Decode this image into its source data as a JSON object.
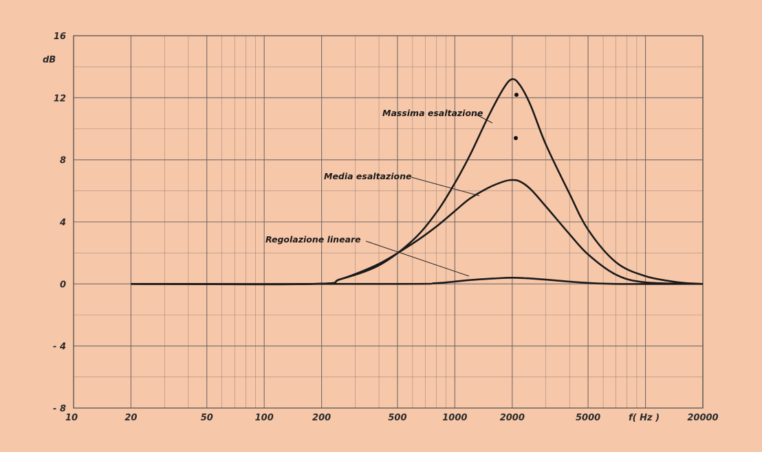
{
  "chart_data": {
    "type": "line",
    "xscale": "log",
    "xlim": [
      10,
      20000
    ],
    "ylim": [
      -8,
      16
    ],
    "grid": true,
    "ylabel": "dB",
    "xlabel": "f( Hz )",
    "x_ticks": [
      "10",
      "20",
      "50",
      "100",
      "200",
      "500",
      "1000",
      "2000",
      "5000",
      "20000"
    ],
    "x_tick_values": [
      10,
      20,
      50,
      100,
      200,
      500,
      1000,
      2000,
      5000,
      20000
    ],
    "y_ticks": [
      "16",
      "12",
      "8",
      "4",
      "0",
      "- 4",
      "- 8"
    ],
    "y_tick_values": [
      16,
      12,
      8,
      4,
      0,
      -4,
      -8
    ],
    "series": [
      {
        "name": "Massima esaltazione",
        "x": [
          20,
          180,
          250,
          400,
          600,
          800,
          1000,
          1200,
          1500,
          1800,
          2000,
          2200,
          2500,
          3000,
          4000,
          5000,
          7000,
          10000,
          15000,
          20000
        ],
        "y": [
          0,
          0,
          0.3,
          1.2,
          2.8,
          4.6,
          6.5,
          8.3,
          10.8,
          12.6,
          13.2,
          12.8,
          11.5,
          9.0,
          5.8,
          3.5,
          1.4,
          0.5,
          0.1,
          0
        ]
      },
      {
        "name": "Media esaltazione",
        "x": [
          20,
          180,
          250,
          400,
          600,
          800,
          1000,
          1200,
          1500,
          1800,
          2000,
          2200,
          2500,
          3000,
          4000,
          5000,
          7000,
          10000,
          20000
        ],
        "y": [
          0,
          0,
          0.3,
          1.3,
          2.6,
          3.7,
          4.7,
          5.5,
          6.2,
          6.6,
          6.7,
          6.6,
          6.1,
          5.0,
          3.2,
          1.9,
          0.6,
          0.1,
          0
        ]
      },
      {
        "name": "Regolazione lineare",
        "x": [
          20,
          500,
          800,
          1200,
          1600,
          2000,
          2500,
          3200,
          4500,
          7000,
          20000
        ],
        "y": [
          0,
          0,
          0.05,
          0.25,
          0.35,
          0.4,
          0.35,
          0.25,
          0.1,
          0,
          0
        ]
      }
    ]
  }
}
